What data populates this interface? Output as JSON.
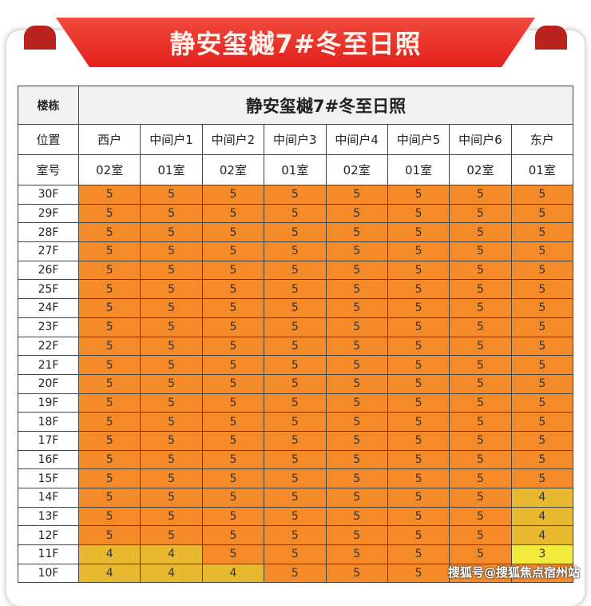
{
  "banner_title": "静安玺樾7#冬至日照",
  "table": {
    "building_label": "楼栋",
    "building_title": "静安玺樾7#冬至日照",
    "position_label": "位置",
    "positions": [
      "西户",
      "中间户1",
      "中间户2",
      "中间户3",
      "中间户4",
      "中间户5",
      "中间户6",
      "东户"
    ],
    "room_label": "室号",
    "rooms": [
      "02室",
      "01室",
      "02室",
      "01室",
      "02室",
      "01室",
      "02室",
      "01室"
    ],
    "rows": [
      {
        "floor": "30F",
        "values": [
          5,
          5,
          5,
          5,
          5,
          5,
          5,
          5
        ]
      },
      {
        "floor": "29F",
        "values": [
          5,
          5,
          5,
          5,
          5,
          5,
          5,
          5
        ]
      },
      {
        "floor": "28F",
        "values": [
          5,
          5,
          5,
          5,
          5,
          5,
          5,
          5
        ]
      },
      {
        "floor": "27F",
        "values": [
          5,
          5,
          5,
          5,
          5,
          5,
          5,
          5
        ]
      },
      {
        "floor": "26F",
        "values": [
          5,
          5,
          5,
          5,
          5,
          5,
          5,
          5
        ]
      },
      {
        "floor": "25F",
        "values": [
          5,
          5,
          5,
          5,
          5,
          5,
          5,
          5
        ]
      },
      {
        "floor": "24F",
        "values": [
          5,
          5,
          5,
          5,
          5,
          5,
          5,
          5
        ]
      },
      {
        "floor": "23F",
        "values": [
          5,
          5,
          5,
          5,
          5,
          5,
          5,
          5
        ]
      },
      {
        "floor": "22F",
        "values": [
          5,
          5,
          5,
          5,
          5,
          5,
          5,
          5
        ]
      },
      {
        "floor": "21F",
        "values": [
          5,
          5,
          5,
          5,
          5,
          5,
          5,
          5
        ]
      },
      {
        "floor": "20F",
        "values": [
          5,
          5,
          5,
          5,
          5,
          5,
          5,
          5
        ]
      },
      {
        "floor": "19F",
        "values": [
          5,
          5,
          5,
          5,
          5,
          5,
          5,
          5
        ]
      },
      {
        "floor": "18F",
        "values": [
          5,
          5,
          5,
          5,
          5,
          5,
          5,
          5
        ]
      },
      {
        "floor": "17F",
        "values": [
          5,
          5,
          5,
          5,
          5,
          5,
          5,
          5
        ]
      },
      {
        "floor": "16F",
        "values": [
          5,
          5,
          5,
          5,
          5,
          5,
          5,
          5
        ]
      },
      {
        "floor": "15F",
        "values": [
          5,
          5,
          5,
          5,
          5,
          5,
          5,
          5
        ]
      },
      {
        "floor": "14F",
        "values": [
          5,
          5,
          5,
          5,
          5,
          5,
          5,
          4
        ]
      },
      {
        "floor": "13F",
        "values": [
          5,
          5,
          5,
          5,
          5,
          5,
          5,
          4
        ]
      },
      {
        "floor": "12F",
        "values": [
          5,
          5,
          5,
          5,
          5,
          5,
          5,
          4
        ]
      },
      {
        "floor": "11F",
        "values": [
          4,
          4,
          5,
          5,
          5,
          5,
          5,
          3
        ]
      },
      {
        "floor": "10F",
        "values": [
          4,
          4,
          4,
          5,
          5,
          5,
          null,
          null
        ]
      }
    ]
  },
  "colors": {
    "5": "#f58b28",
    "4": "#e8b830",
    "3": "#f2ea3c",
    "banner": "#e3201c"
  },
  "watermark": "搜狐号@搜狐焦点宿州站"
}
